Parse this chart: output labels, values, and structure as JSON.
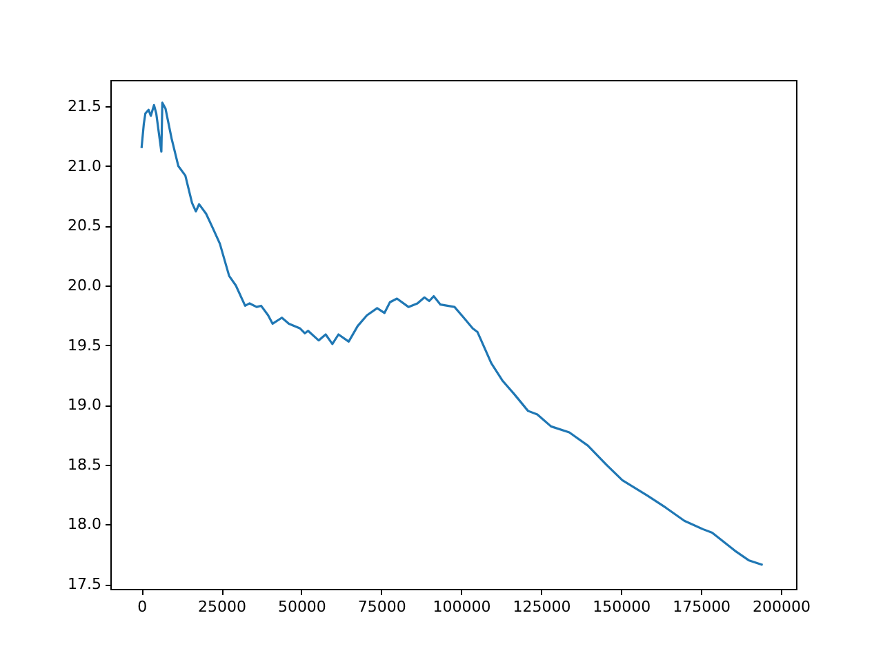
{
  "chart_data": {
    "type": "line",
    "x": [
      0,
      700,
      1200,
      2200,
      2900,
      3900,
      4600,
      6200,
      6500,
      7500,
      9400,
      11500,
      13700,
      15800,
      17000,
      18000,
      20200,
      22300,
      24500,
      27400,
      29500,
      32400,
      33800,
      36000,
      37400,
      39600,
      41000,
      43900,
      46100,
      49600,
      51100,
      52100,
      55400,
      57600,
      59700,
      61600,
      64800,
      67600,
      70500,
      73700,
      76000,
      77700,
      79900,
      83500,
      86300,
      88500,
      90000,
      91400,
      93500,
      97900,
      100800,
      103600,
      105100,
      109400,
      113000,
      116600,
      120900,
      123800,
      128100,
      133800,
      139600,
      145400,
      150400,
      158300,
      164000,
      169800,
      175600,
      178500,
      185600,
      189900,
      194300
    ],
    "series": [
      {
        "color": "#1f77b4",
        "values": [
          21.15,
          21.35,
          21.44,
          21.47,
          21.42,
          21.51,
          21.44,
          21.12,
          21.53,
          21.48,
          21.23,
          21.0,
          20.92,
          20.69,
          20.62,
          20.68,
          20.6,
          20.48,
          20.35,
          20.08,
          20.0,
          19.83,
          19.85,
          19.82,
          19.83,
          19.75,
          19.68,
          19.73,
          19.68,
          19.64,
          19.6,
          19.62,
          19.54,
          19.59,
          19.51,
          19.59,
          19.53,
          19.66,
          19.75,
          19.81,
          19.77,
          19.86,
          19.89,
          19.82,
          19.85,
          19.9,
          19.87,
          19.91,
          19.84,
          19.82,
          19.73,
          19.64,
          19.61,
          19.35,
          19.2,
          19.09,
          18.95,
          18.92,
          18.82,
          18.77,
          18.66,
          18.5,
          18.37,
          18.24,
          18.14,
          18.03,
          17.96,
          17.93,
          17.78,
          17.7,
          17.66
        ]
      }
    ],
    "xlim": [
      -9750,
      204750
    ],
    "ylim": [
      17.46,
      21.72
    ],
    "xticks": [
      0,
      25000,
      50000,
      75000,
      100000,
      125000,
      150000,
      175000,
      200000
    ],
    "yticks": [
      {
        "value": 17.5,
        "label": "17.5"
      },
      {
        "value": 18,
        "label": "18.0"
      },
      {
        "value": 18.5,
        "label": "18.5"
      },
      {
        "value": 19,
        "label": "19.0"
      },
      {
        "value": 19.5,
        "label": "19.5"
      },
      {
        "value": 20,
        "label": "20.0"
      },
      {
        "value": 20.5,
        "label": "20.5"
      },
      {
        "value": 21,
        "label": "21.0"
      },
      {
        "value": 21.5,
        "label": "21.5"
      }
    ],
    "grid": false
  }
}
